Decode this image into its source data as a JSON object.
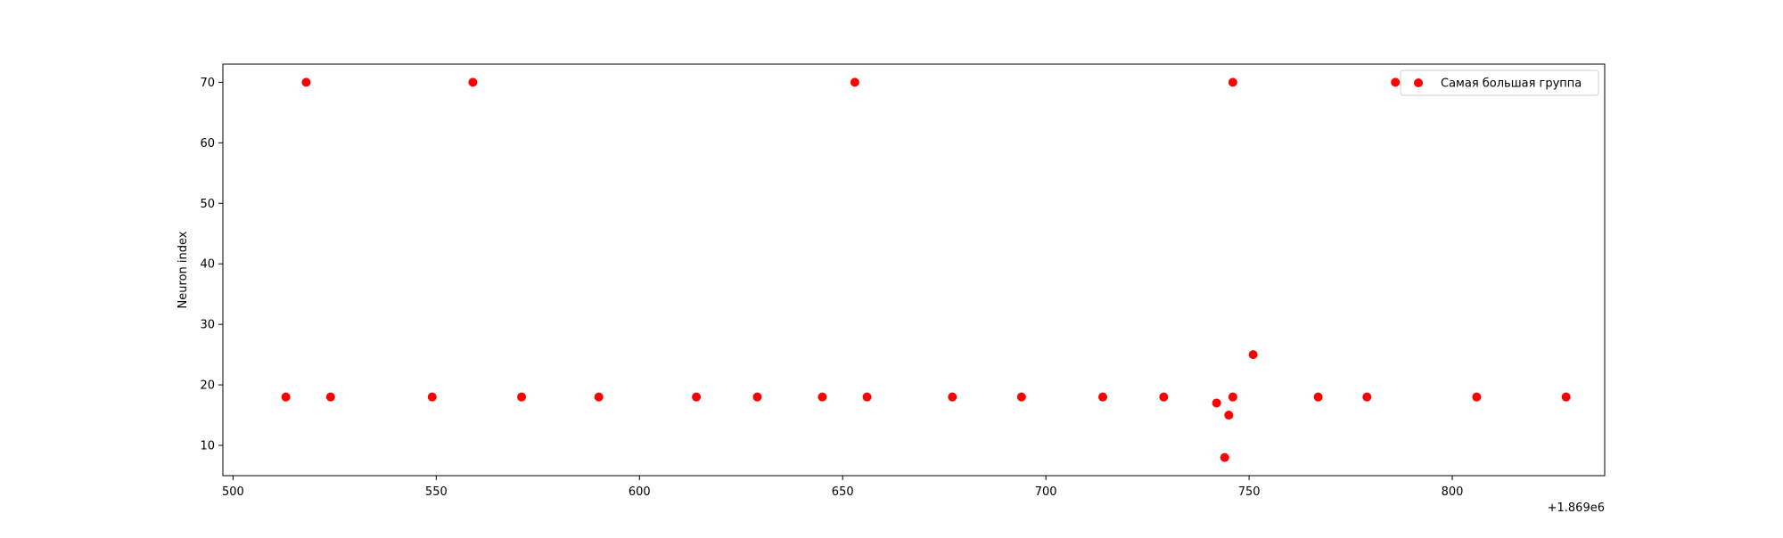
{
  "chart_data": {
    "type": "scatter",
    "title": "",
    "xlabel": "",
    "ylabel": "Neuron index",
    "x_offset_label": "+1.869e6",
    "xlim": [
      1869497.5,
      1869837.5
    ],
    "ylim": [
      5,
      73
    ],
    "x_ticks": [
      1869500,
      1869550,
      1869600,
      1869650,
      1869700,
      1869750,
      1869800
    ],
    "x_tick_labels": [
      "500",
      "550",
      "600",
      "650",
      "700",
      "750",
      "800"
    ],
    "y_ticks": [
      10,
      20,
      30,
      40,
      50,
      60,
      70
    ],
    "y_tick_labels": [
      "10",
      "20",
      "30",
      "40",
      "50",
      "60",
      "70"
    ],
    "grid": false,
    "legend_position": "top-right",
    "series": [
      {
        "name": "Самая большая группа",
        "color": "#ff0000",
        "marker": "circle",
        "points": [
          {
            "x": 1869513,
            "y": 18
          },
          {
            "x": 1869518,
            "y": 70
          },
          {
            "x": 1869524,
            "y": 18
          },
          {
            "x": 1869549,
            "y": 18
          },
          {
            "x": 1869559,
            "y": 70
          },
          {
            "x": 1869571,
            "y": 18
          },
          {
            "x": 1869590,
            "y": 18
          },
          {
            "x": 1869614,
            "y": 18
          },
          {
            "x": 1869629,
            "y": 18
          },
          {
            "x": 1869645,
            "y": 18
          },
          {
            "x": 1869653,
            "y": 70
          },
          {
            "x": 1869656,
            "y": 18
          },
          {
            "x": 1869677,
            "y": 18
          },
          {
            "x": 1869694,
            "y": 18
          },
          {
            "x": 1869714,
            "y": 18
          },
          {
            "x": 1869729,
            "y": 18
          },
          {
            "x": 1869742,
            "y": 17
          },
          {
            "x": 1869744,
            "y": 8
          },
          {
            "x": 1869745,
            "y": 15
          },
          {
            "x": 1869746,
            "y": 18
          },
          {
            "x": 1869746,
            "y": 70
          },
          {
            "x": 1869751,
            "y": 25
          },
          {
            "x": 1869767,
            "y": 18
          },
          {
            "x": 1869779,
            "y": 18
          },
          {
            "x": 1869786,
            "y": 70
          },
          {
            "x": 1869806,
            "y": 18
          },
          {
            "x": 1869828,
            "y": 18
          }
        ]
      }
    ]
  }
}
